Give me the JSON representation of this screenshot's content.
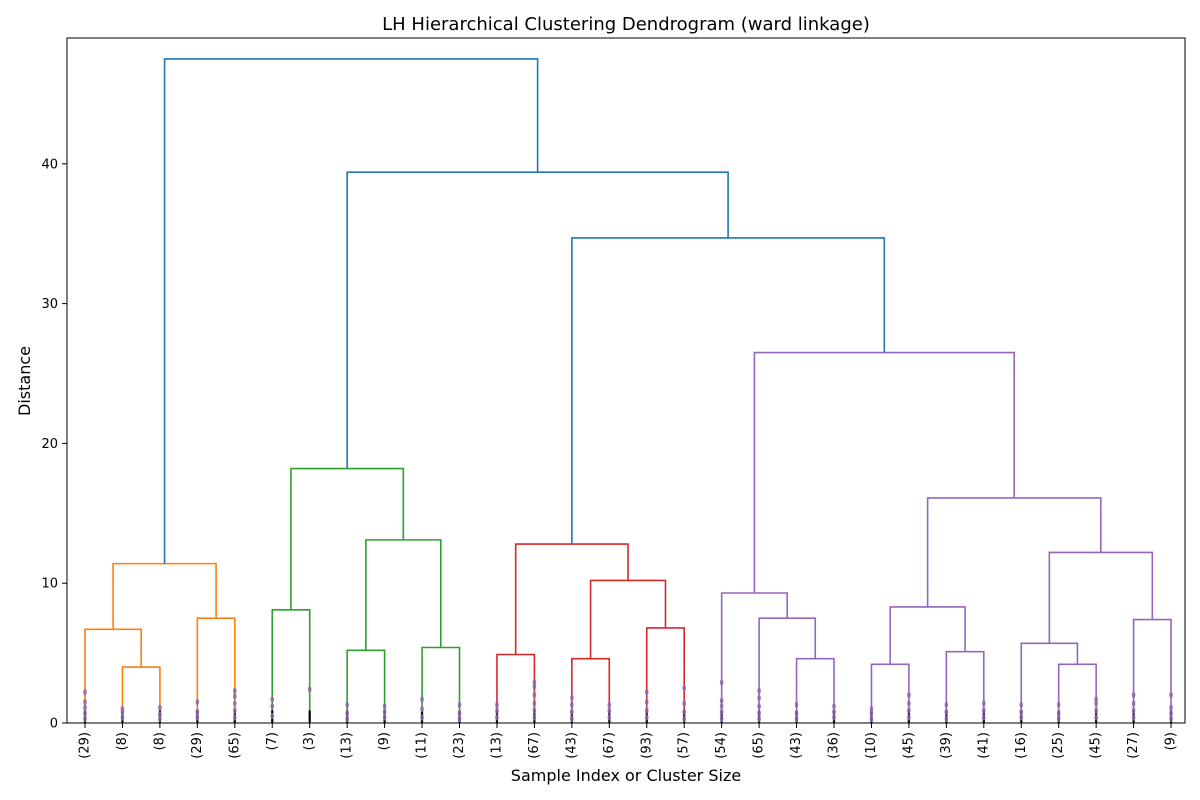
{
  "chart_data": {
    "type": "dendrogram",
    "title": "LH Hierarchical Clustering Dendrogram (ward linkage)",
    "xlabel": "Sample Index or Cluster Size",
    "ylabel": "Distance",
    "ylim": [
      0,
      49
    ],
    "yticks": [
      0,
      10,
      20,
      30,
      40
    ],
    "leaf_labels": [
      "(29)",
      "(8)",
      "(8)",
      "(29)",
      "(65)",
      "(7)",
      "(3)",
      "(13)",
      "(9)",
      "(11)",
      "(23)",
      "(13)",
      "(67)",
      "(43)",
      "(67)",
      "(93)",
      "(57)",
      "(54)",
      "(65)",
      "(43)",
      "(36)",
      "(10)",
      "(45)",
      "(39)",
      "(41)",
      "(16)",
      "(25)",
      "(45)",
      "(27)",
      "(9)"
    ],
    "colors": {
      "C0": "#1f77b4",
      "C1": "#ff7f0e",
      "C2": "#2ca02c",
      "C3": "#d62728",
      "C4": "#9467bd"
    },
    "merges": [
      {
        "left": 1,
        "right": 2,
        "height": 4.0,
        "color": "C1"
      },
      {
        "left": 0,
        "right": 30,
        "height": 6.7,
        "color": "C1"
      },
      {
        "left": 3,
        "right": 4,
        "height": 7.5,
        "color": "C1"
      },
      {
        "left": 31,
        "right": 32,
        "height": 11.4,
        "color": "C1"
      },
      {
        "left": 5,
        "right": 6,
        "height": 8.1,
        "color": "C2"
      },
      {
        "left": 7,
        "right": 8,
        "height": 5.2,
        "color": "C2"
      },
      {
        "left": 9,
        "right": 10,
        "height": 5.4,
        "color": "C2"
      },
      {
        "left": 35,
        "right": 36,
        "height": 13.1,
        "color": "C2"
      },
      {
        "left": 34,
        "right": 37,
        "height": 18.2,
        "color": "C2"
      },
      {
        "left": 11,
        "right": 12,
        "height": 4.9,
        "color": "C3"
      },
      {
        "left": 13,
        "right": 14,
        "height": 4.6,
        "color": "C3"
      },
      {
        "left": 15,
        "right": 16,
        "height": 6.8,
        "color": "C3"
      },
      {
        "left": 40,
        "right": 41,
        "height": 10.2,
        "color": "C3"
      },
      {
        "left": 39,
        "right": 42,
        "height": 12.8,
        "color": "C3"
      },
      {
        "left": 19,
        "right": 20,
        "height": 4.6,
        "color": "C4"
      },
      {
        "left": 18,
        "right": 44,
        "height": 7.5,
        "color": "C4"
      },
      {
        "left": 17,
        "right": 45,
        "height": 9.3,
        "color": "C4"
      },
      {
        "left": 21,
        "right": 22,
        "height": 4.2,
        "color": "C4"
      },
      {
        "left": 23,
        "right": 24,
        "height": 5.1,
        "color": "C4"
      },
      {
        "left": 47,
        "right": 48,
        "height": 8.3,
        "color": "C4"
      },
      {
        "left": 26,
        "right": 27,
        "height": 4.2,
        "color": "C4"
      },
      {
        "left": 25,
        "right": 50,
        "height": 5.7,
        "color": "C4"
      },
      {
        "left": 28,
        "right": 29,
        "height": 7.4,
        "color": "C4"
      },
      {
        "left": 51,
        "right": 52,
        "height": 12.2,
        "color": "C4"
      },
      {
        "left": 49,
        "right": 53,
        "height": 16.1,
        "color": "C4"
      },
      {
        "left": 46,
        "right": 54,
        "height": 26.5,
        "color": "C4"
      },
      {
        "left": 43,
        "right": 55,
        "height": 34.7,
        "color": "C0"
      },
      {
        "left": 38,
        "right": 56,
        "height": 39.4,
        "color": "C0"
      },
      {
        "left": 33,
        "right": 57,
        "height": 47.5,
        "color": "C0"
      }
    ],
    "leaf_point_heights": [
      [
        0.3,
        0.7,
        1.1,
        1.5,
        2.2
      ],
      [
        0.4,
        0.8,
        1.0
      ],
      [
        0.3,
        0.6,
        1.1
      ],
      [
        0.4,
        0.8,
        1.5
      ],
      [
        0.4,
        0.9,
        1.4,
        1.9,
        2.3
      ],
      [
        0.5,
        1.2,
        1.7
      ],
      [
        2.4
      ],
      [
        0.3,
        0.7,
        1.3
      ],
      [
        0.4,
        0.8,
        1.2
      ],
      [
        0.4,
        1.0,
        1.7
      ],
      [
        0.3,
        0.7,
        1.3
      ],
      [
        0.4,
        0.9,
        1.3
      ],
      [
        0.4,
        0.9,
        1.4,
        2.0,
        2.6,
        2.9
      ],
      [
        0.3,
        0.8,
        1.3,
        1.8
      ],
      [
        0.4,
        0.9,
        1.3
      ],
      [
        0.4,
        0.9,
        1.5,
        2.2
      ],
      [
        0.3,
        0.8,
        1.4,
        2.5
      ],
      [
        0.3,
        0.8,
        1.2,
        1.6,
        2.9
      ],
      [
        0.3,
        0.7,
        1.2,
        1.8,
        2.3
      ],
      [
        0.3,
        0.7,
        1.3
      ],
      [
        0.4,
        0.8,
        1.2
      ],
      [
        0.3,
        0.7,
        1.0
      ],
      [
        0.4,
        0.9,
        1.4,
        2.0
      ],
      [
        0.3,
        0.8,
        1.3
      ],
      [
        0.4,
        0.9,
        1.4
      ],
      [
        0.4,
        0.8,
        1.3
      ],
      [
        0.3,
        0.7,
        1.3
      ],
      [
        0.4,
        0.9,
        1.4,
        1.7
      ],
      [
        0.4,
        0.9,
        1.4,
        2.0
      ],
      [
        0.3,
        0.7,
        1.1,
        2.0
      ]
    ]
  }
}
